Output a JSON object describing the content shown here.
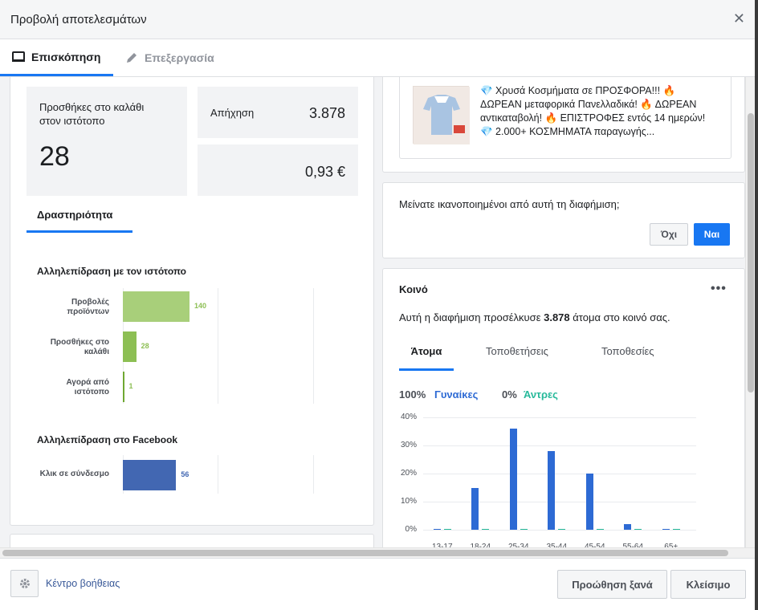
{
  "dialog": {
    "title": "Προβολή αποτελεσμάτων"
  },
  "tabs": [
    {
      "label": "Επισκόπηση",
      "icon": "tablet-icon",
      "active": true
    },
    {
      "label": "Επεξεργασία",
      "icon": "pencil-icon",
      "active": false
    }
  ],
  "metrics": {
    "cart": {
      "label": "Προσθήκες στο καλάθι στον ιστότοπο",
      "value": "28"
    },
    "reach": {
      "label": "Απήχηση",
      "value": "3.878"
    },
    "cost": {
      "value": "0,93 €"
    }
  },
  "activity": {
    "tab": "Δραστηριότητα",
    "site_title": "Αλληλεπίδραση με τον ιστότοπο",
    "site_bars": [
      {
        "label": "Προβολές προϊόντων",
        "value": 140
      },
      {
        "label": "Προσθήκες στο καλάθι",
        "value": 28
      },
      {
        "label": "Αγορά από ιστότοπο",
        "value": 1
      }
    ],
    "fb_title": "Αλληλεπίδραση στο Facebook",
    "fb_bars": [
      {
        "label": "Κλικ σε σύνδεσμο",
        "value": 56
      }
    ],
    "colors": {
      "site1": "#a8cf7a",
      "site2": "#8dbf54",
      "site3": "#6fa832",
      "fb": "#4267b2",
      "site_text": "#8dbf54",
      "fb_text": "#4267b2"
    }
  },
  "ad": {
    "text": "💎 Χρυσά Κοσμήματα σε ΠΡΟΣΦΟΡΑ!!! 🔥 ΔΩΡΕΑΝ μεταφορικά Πανελλαδικά! 🔥 ΔΩΡΕΑΝ αντικαταβολή! 🔥 ΕΠΙΣΤΡΟΦΕΣ εντός 14 ημερών! 💎 2.000+ ΚΟΣΜΗΜΑΤΑ παραγωγής..."
  },
  "feedback": {
    "question": "Μείνατε ικανοποιημένοι από αυτή τη διαφήμιση;",
    "no": "Όχι",
    "yes": "Ναι"
  },
  "audience": {
    "title": "Κοινό",
    "more": "•••",
    "desc_pre": "Αυτή η διαφήμιση προσέλκυσε ",
    "desc_num": "3.878",
    "desc_post": " άτομα στο κοινό σας.",
    "tabs": [
      "Άτομα",
      "Τοποθετήσεις",
      "Τοποθεσίες"
    ],
    "women_pct": "100%",
    "women_label": "Γυναίκες",
    "men_pct": "0%",
    "men_label": "Άντρες",
    "colors": {
      "women": "#2d6ad4",
      "men": "#26b99a"
    }
  },
  "chart_data": {
    "type": "bar",
    "categories": [
      "13-17",
      "18-24",
      "25-34",
      "35-44",
      "45-54",
      "55-64",
      "65+"
    ],
    "series": [
      {
        "name": "Γυναίκες",
        "values": [
          0,
          15,
          36,
          28,
          20,
          2,
          0
        ]
      },
      {
        "name": "Άντρες",
        "values": [
          0,
          0,
          0,
          0,
          0,
          0,
          0
        ]
      }
    ],
    "yticks": [
      "40%",
      "30%",
      "20%",
      "10%",
      "0%"
    ],
    "ylim": [
      0,
      40
    ]
  },
  "footer": {
    "help": "Κέντρο βοήθειας",
    "boost": "Προώθηση ξανά",
    "close": "Κλείσιμο"
  }
}
